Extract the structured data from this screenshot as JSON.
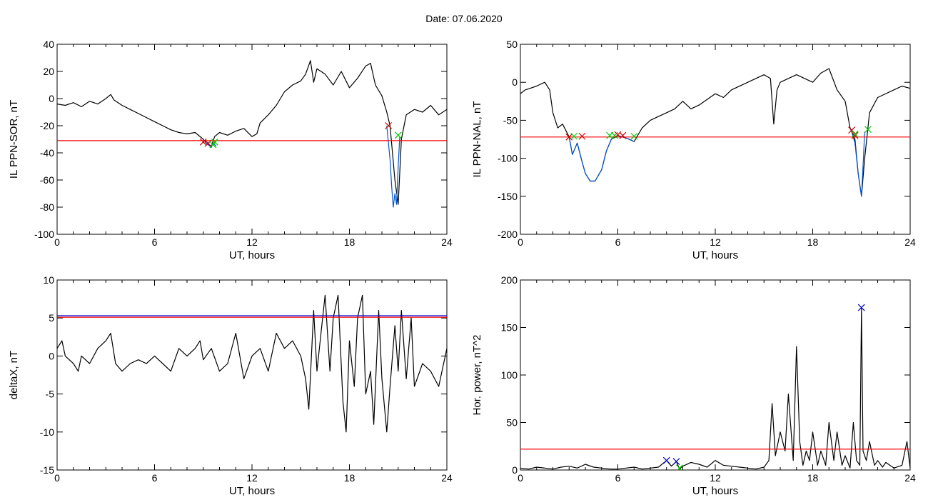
{
  "figure": {
    "title": "Date:  07.06.2020"
  },
  "chart_data": [
    {
      "id": "il-sor",
      "type": "line",
      "xlabel": "UT, hours",
      "ylabel": "IL PPN-SOR, nT",
      "xlim": [
        0,
        24
      ],
      "ylim": [
        -100,
        40
      ],
      "xticks": [
        0,
        6,
        12,
        18,
        24
      ],
      "yticks": [
        40,
        20,
        0,
        -20,
        -40,
        -60,
        -80,
        -100
      ],
      "threshold": {
        "value": -31,
        "color": "#ff0000"
      },
      "series": [
        {
          "color": "#000000",
          "x": [
            0,
            0.5,
            1,
            1.5,
            2,
            2.5,
            3,
            3.3,
            3.5,
            4,
            4.5,
            5,
            5.5,
            6,
            6.5,
            7,
            7.5,
            8,
            8.5,
            9,
            9.2,
            9.5,
            9.7,
            10,
            10.5,
            11,
            11.5,
            12,
            12.3,
            12.5,
            13,
            13.5,
            14,
            14.5,
            15,
            15.3,
            15.6,
            15.8,
            16,
            16.5,
            17,
            17.5,
            18,
            18.5,
            19,
            19.3,
            19.6,
            20,
            20.3,
            20.5,
            20.8,
            21,
            21.2,
            21.5,
            22,
            22.5,
            23,
            23.5,
            24
          ],
          "y": [
            -4,
            -5,
            -3,
            -6,
            -2,
            -4,
            0,
            3,
            -1,
            -5,
            -8,
            -11,
            -14,
            -17,
            -20,
            -23,
            -25,
            -26,
            -25,
            -30,
            -33,
            -35,
            -28,
            -25,
            -27,
            -24,
            -22,
            -28,
            -26,
            -18,
            -12,
            -5,
            5,
            10,
            13,
            18,
            28,
            12,
            22,
            18,
            10,
            20,
            8,
            15,
            24,
            26,
            10,
            2,
            -10,
            -20,
            -60,
            -78,
            -30,
            -12,
            -8,
            -10,
            -5,
            -12,
            -8
          ]
        },
        {
          "color": "#0055cc",
          "x": [
            20.3,
            20.5,
            20.6,
            20.7,
            20.8,
            20.9,
            21.0,
            21.1
          ],
          "y": [
            -20,
            -45,
            -65,
            -80,
            -70,
            -78,
            -50,
            -28
          ]
        },
        {
          "color": "#0055cc",
          "x": [
            9.1,
            9.3,
            9.5,
            9.6,
            9.8
          ],
          "y": [
            -32,
            -34,
            -36,
            -33,
            -35
          ]
        }
      ],
      "markers": [
        {
          "x": 9.0,
          "y": -32,
          "color": "#cc0000"
        },
        {
          "x": 9.3,
          "y": -33,
          "color": "#cc0000"
        },
        {
          "x": 9.6,
          "y": -34,
          "color": "#00cc00"
        },
        {
          "x": 9.7,
          "y": -32,
          "color": "#00cc00"
        },
        {
          "x": 20.4,
          "y": -20,
          "color": "#cc0000"
        },
        {
          "x": 21.0,
          "y": -27,
          "color": "#00cc00"
        }
      ]
    },
    {
      "id": "il-nal",
      "type": "line",
      "xlabel": "UT, hours",
      "ylabel": "IL PPN-NAL, nT",
      "xlim": [
        0,
        24
      ],
      "ylim": [
        -200,
        50
      ],
      "xticks": [
        0,
        6,
        12,
        18,
        24
      ],
      "yticks": [
        50,
        0,
        -50,
        -100,
        -150,
        -200
      ],
      "threshold": {
        "value": -72,
        "color": "#ff0000"
      },
      "series": [
        {
          "color": "#000000",
          "x": [
            0,
            0.3,
            0.6,
            1,
            1.5,
            1.8,
            2,
            2.3,
            2.6,
            3,
            3.2,
            3.5,
            3.8,
            4,
            4.3,
            4.6,
            5,
            5.3,
            5.6,
            6,
            6.3,
            6.6,
            7,
            7.5,
            8,
            8.5,
            9,
            9.5,
            10,
            10.5,
            11,
            12,
            12.5,
            13,
            14,
            15,
            15.4,
            15.6,
            15.8,
            16,
            17,
            18,
            18.5,
            19,
            19.5,
            20,
            20.3,
            20.6,
            20.8,
            21,
            21.2,
            21.5,
            22,
            23,
            23.5,
            24
          ],
          "y": [
            -15,
            -10,
            -8,
            -5,
            0,
            -10,
            -40,
            -60,
            -55,
            -72,
            -95,
            -80,
            -105,
            -120,
            -130,
            -130,
            -115,
            -90,
            -75,
            -70,
            -72,
            -74,
            -78,
            -60,
            -50,
            -45,
            -40,
            -35,
            -25,
            -35,
            -30,
            -15,
            -20,
            -10,
            0,
            10,
            5,
            -55,
            -10,
            0,
            10,
            0,
            12,
            18,
            -10,
            -25,
            -60,
            -75,
            -120,
            -150,
            -100,
            -40,
            -20,
            -10,
            -5,
            -8
          ]
        },
        {
          "color": "#0055cc",
          "x": [
            3.0,
            3.2,
            3.5,
            3.8,
            4.0,
            4.3,
            4.6,
            5.0,
            5.3,
            5.6,
            6.0,
            6.3,
            6.6,
            7.0
          ],
          "y": [
            -72,
            -95,
            -80,
            -105,
            -120,
            -130,
            -130,
            -115,
            -90,
            -75,
            -70,
            -72,
            -74,
            -78
          ]
        },
        {
          "color": "#0055cc",
          "x": [
            20.4,
            20.6,
            20.8,
            21.0,
            21.1,
            21.2
          ],
          "y": [
            -65,
            -80,
            -120,
            -150,
            -110,
            -65
          ]
        }
      ],
      "markers": [
        {
          "x": 3.0,
          "y": -72,
          "color": "#cc0000"
        },
        {
          "x": 3.3,
          "y": -71,
          "color": "#00cc00"
        },
        {
          "x": 3.8,
          "y": -71,
          "color": "#cc0000"
        },
        {
          "x": 5.5,
          "y": -70,
          "color": "#00cc00"
        },
        {
          "x": 5.8,
          "y": -70,
          "color": "#00cc00"
        },
        {
          "x": 6.0,
          "y": -69,
          "color": "#cc0000"
        },
        {
          "x": 6.3,
          "y": -70,
          "color": "#cc0000"
        },
        {
          "x": 7.0,
          "y": -71,
          "color": "#00cc00"
        },
        {
          "x": 20.4,
          "y": -63,
          "color": "#cc0000"
        },
        {
          "x": 20.6,
          "y": -70,
          "color": "#cc0000"
        },
        {
          "x": 20.6,
          "y": -68,
          "color": "#00cc00"
        },
        {
          "x": 21.4,
          "y": -62,
          "color": "#00cc00"
        }
      ]
    },
    {
      "id": "deltax",
      "type": "line",
      "xlabel": "UT, hours",
      "ylabel": "deltaX, nT",
      "xlim": [
        0,
        24
      ],
      "ylim": [
        -15,
        10
      ],
      "xticks": [
        0,
        6,
        12,
        18,
        24
      ],
      "yticks": [
        10,
        5,
        0,
        -5,
        -10,
        -15
      ],
      "thresholds": [
        {
          "value": 5.3,
          "color": "#0000cc"
        },
        {
          "value": 5.1,
          "color": "#ff0000"
        }
      ],
      "series": [
        {
          "color": "#000000",
          "x": [
            0,
            0.3,
            0.5,
            1,
            1.3,
            1.5,
            2,
            2.5,
            3,
            3.3,
            3.6,
            4,
            4.5,
            5,
            5.5,
            6,
            6.5,
            7,
            7.5,
            8,
            8.5,
            8.8,
            9,
            9.5,
            10,
            10.5,
            11,
            11.5,
            12,
            12.5,
            13,
            13.5,
            14,
            14.5,
            15,
            15.3,
            15.5,
            15.8,
            16,
            16.3,
            16.5,
            16.8,
            17,
            17.3,
            17.6,
            17.8,
            18,
            18.3,
            18.5,
            18.8,
            19,
            19.3,
            19.5,
            19.8,
            20,
            20.3,
            20.5,
            20.8,
            21,
            21.2,
            21.5,
            21.8,
            22,
            22.5,
            23,
            23.5,
            24
          ],
          "y": [
            1,
            2,
            0,
            -1,
            -2,
            0,
            -1,
            1,
            2,
            3,
            -1,
            -2,
            -1,
            -0.5,
            -1,
            0,
            -1,
            -2,
            1,
            0,
            1,
            2,
            -0.5,
            1,
            -2,
            -1,
            3,
            -3,
            0,
            1,
            -2,
            3,
            1,
            2,
            0,
            -3,
            -7,
            6,
            -2,
            4,
            8,
            -2,
            5,
            8,
            -6,
            -10,
            2,
            -4,
            5,
            8,
            -5,
            -2,
            -9,
            6,
            -3,
            -10,
            -4,
            4,
            -2,
            6,
            -3,
            5,
            -4,
            -1,
            -2,
            -4,
            1
          ]
        }
      ],
      "markers": []
    },
    {
      "id": "hor-power",
      "type": "line",
      "xlabel": "UT, hours",
      "ylabel": "Hor. power, nT^2",
      "xlim": [
        0,
        24
      ],
      "ylim": [
        0,
        200
      ],
      "xticks": [
        0,
        6,
        12,
        18,
        24
      ],
      "yticks": [
        200,
        150,
        100,
        50,
        0
      ],
      "threshold": {
        "value": 22,
        "color": "#ff0000"
      },
      "series": [
        {
          "color": "#000000",
          "x": [
            0,
            0.5,
            1,
            1.5,
            2,
            2.5,
            3,
            3.5,
            4,
            4.5,
            5,
            5.5,
            6,
            6.5,
            7,
            7.5,
            8,
            8.5,
            9,
            9.3,
            9.6,
            9.8,
            10,
            10.5,
            11,
            11.5,
            12,
            12.5,
            13,
            13.5,
            14,
            14.5,
            15,
            15.3,
            15.5,
            15.7,
            16,
            16.3,
            16.5,
            16.8,
            17,
            17.2,
            17.4,
            17.6,
            17.8,
            18,
            18.3,
            18.5,
            18.8,
            19,
            19.3,
            19.5,
            19.8,
            20,
            20.3,
            20.5,
            20.7,
            20.9,
            21,
            21.1,
            21.3,
            21.5,
            21.8,
            22,
            22.3,
            22.5,
            23,
            23.5,
            23.8,
            24
          ],
          "y": [
            2,
            1,
            3,
            2,
            1,
            3,
            4,
            2,
            6,
            3,
            2,
            1,
            1,
            2,
            3,
            1,
            2,
            3,
            10,
            4,
            9,
            1,
            4,
            8,
            6,
            3,
            10,
            5,
            4,
            3,
            2,
            1,
            3,
            10,
            70,
            15,
            40,
            20,
            80,
            10,
            130,
            30,
            5,
            20,
            10,
            40,
            5,
            20,
            5,
            50,
            10,
            40,
            5,
            15,
            2,
            50,
            10,
            5,
            170,
            20,
            10,
            30,
            5,
            10,
            3,
            8,
            2,
            5,
            30,
            2
          ]
        }
      ],
      "markers": [
        {
          "x": 9.0,
          "y": 10,
          "color": "#0000cc"
        },
        {
          "x": 9.6,
          "y": 9,
          "color": "#0000cc"
        },
        {
          "x": 9.8,
          "y": 2,
          "color": "#00cc00"
        },
        {
          "x": 21.0,
          "y": 171,
          "color": "#0000cc"
        }
      ]
    }
  ]
}
